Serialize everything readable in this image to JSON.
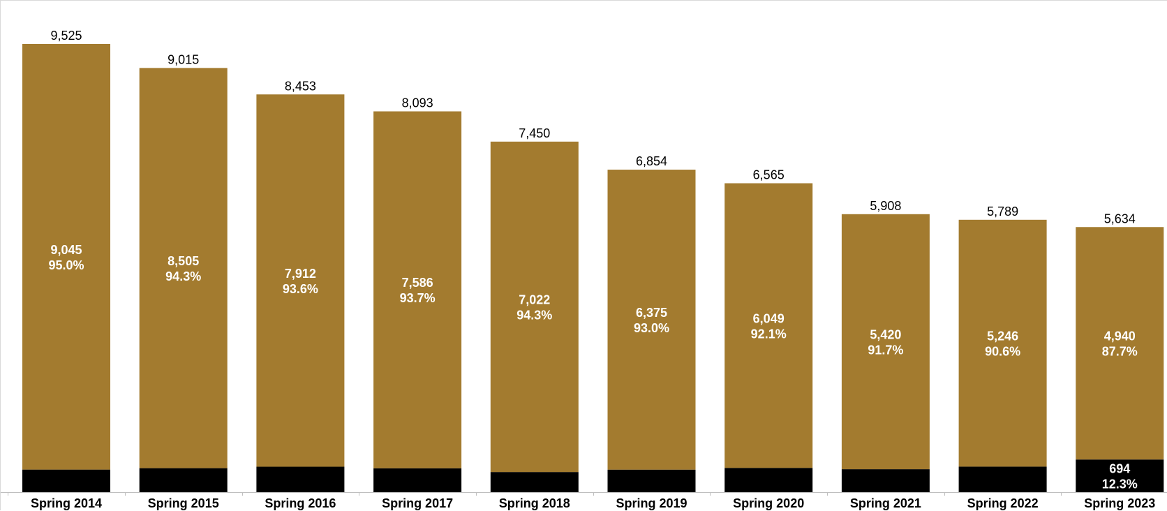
{
  "chart_data": {
    "type": "bar",
    "stacked": true,
    "categories": [
      "Spring 2014",
      "Spring 2015",
      "Spring 2016",
      "Spring 2017",
      "Spring 2018",
      "Spring 2019",
      "Spring 2020",
      "Spring 2021",
      "Spring 2022",
      "Spring 2023"
    ],
    "totals": [
      9525,
      9015,
      8453,
      8093,
      7450,
      6854,
      6565,
      5908,
      5789,
      5634
    ],
    "series": [
      {
        "color": "#a37b2f",
        "values": [
          9045,
          8505,
          7912,
          7586,
          7022,
          6375,
          6049,
          5420,
          5246,
          4940
        ],
        "percents": [
          "95.0%",
          "94.3%",
          "93.6%",
          "93.7%",
          "94.3%",
          "93.0%",
          "92.1%",
          "91.7%",
          "90.6%",
          "87.7%"
        ]
      },
      {
        "color": "#000000",
        "values": [
          480,
          510,
          541,
          507,
          428,
          479,
          516,
          488,
          543,
          694
        ],
        "percents": [
          "",
          "",
          "",
          "",
          "",
          "",
          "",
          "",
          "",
          "12.3%"
        ]
      }
    ],
    "data_labels": {
      "totals": [
        "9,525",
        "9,015",
        "8,453",
        "8,093",
        "7,450",
        "6,854",
        "6,565",
        "5,908",
        "5,789",
        "5,634"
      ],
      "series0": [
        "9,045",
        "8,505",
        "7,912",
        "7,586",
        "7,022",
        "6,375",
        "6,049",
        "5,420",
        "5,246",
        "4,940"
      ],
      "series1": [
        "",
        "",
        "",
        "",
        "",
        "",
        "",
        "",
        "",
        "694"
      ]
    },
    "ylim": [
      0,
      9525
    ],
    "title": "",
    "xlabel": "",
    "ylabel": "",
    "grid": false,
    "legend": "none"
  }
}
